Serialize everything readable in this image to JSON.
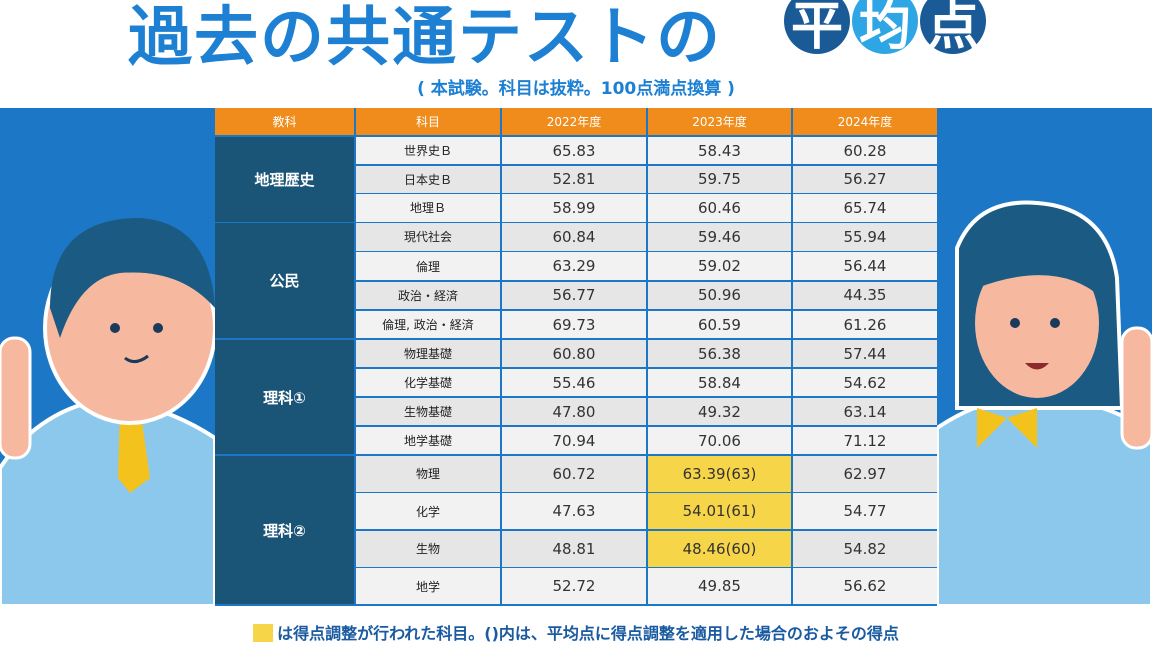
{
  "title": {
    "main": "過去の共通テストの",
    "circled": [
      "平",
      "均",
      "点"
    ]
  },
  "subtitle": "( 本試験。科目は抜粋。100点満点換算 )",
  "highlight_color": "#f7d548",
  "table": {
    "header": [
      "教科",
      "科目",
      "2022年度",
      "2023年度",
      "2024年度"
    ],
    "groups": [
      {
        "name": "地理歴史",
        "rows": [
          {
            "subject": "世界史Ｂ",
            "values": [
              "65.83",
              "58.43",
              "60.28"
            ]
          },
          {
            "subject": "日本史Ｂ",
            "values": [
              "52.81",
              "59.75",
              "56.27"
            ]
          },
          {
            "subject": "地理Ｂ",
            "values": [
              "58.99",
              "60.46",
              "65.74"
            ]
          }
        ]
      },
      {
        "name": "公民",
        "rows": [
          {
            "subject": "現代社会",
            "values": [
              "60.84",
              "59.46",
              "55.94"
            ]
          },
          {
            "subject": "倫理",
            "values": [
              "63.29",
              "59.02",
              "56.44"
            ]
          },
          {
            "subject": "政治・経済",
            "values": [
              "56.77",
              "50.96",
              "44.35"
            ]
          },
          {
            "subject": "倫理, 政治・経済",
            "values": [
              "69.73",
              "60.59",
              "61.26"
            ]
          }
        ]
      },
      {
        "name": "理科①",
        "rows": [
          {
            "subject": "物理基礎",
            "values": [
              "60.80",
              "56.38",
              "57.44"
            ]
          },
          {
            "subject": "化学基礎",
            "values": [
              "55.46",
              "58.84",
              "54.62"
            ]
          },
          {
            "subject": "生物基礎",
            "values": [
              "47.80",
              "49.32",
              "63.14"
            ]
          },
          {
            "subject": "地学基礎",
            "values": [
              "70.94",
              "70.06",
              "71.12"
            ]
          }
        ]
      },
      {
        "name": "理科②",
        "rows": [
          {
            "subject": "物理",
            "values": [
              "60.72",
              {
                "text": "63.39(63)",
                "highlight": true
              },
              "62.97"
            ]
          },
          {
            "subject": "化学",
            "values": [
              "47.63",
              {
                "text": "54.01(61)",
                "highlight": true
              },
              "54.77"
            ]
          },
          {
            "subject": "生物",
            "values": [
              "48.81",
              {
                "text": "48.46(60)",
                "highlight": true
              },
              "54.82"
            ]
          },
          {
            "subject": "地学",
            "values": [
              "52.72",
              "49.85",
              "56.62"
            ]
          }
        ]
      }
    ]
  },
  "note": "は得点調整が行われた科目。()内は、平均点に得点調整を適用した場合のおよその得点"
}
